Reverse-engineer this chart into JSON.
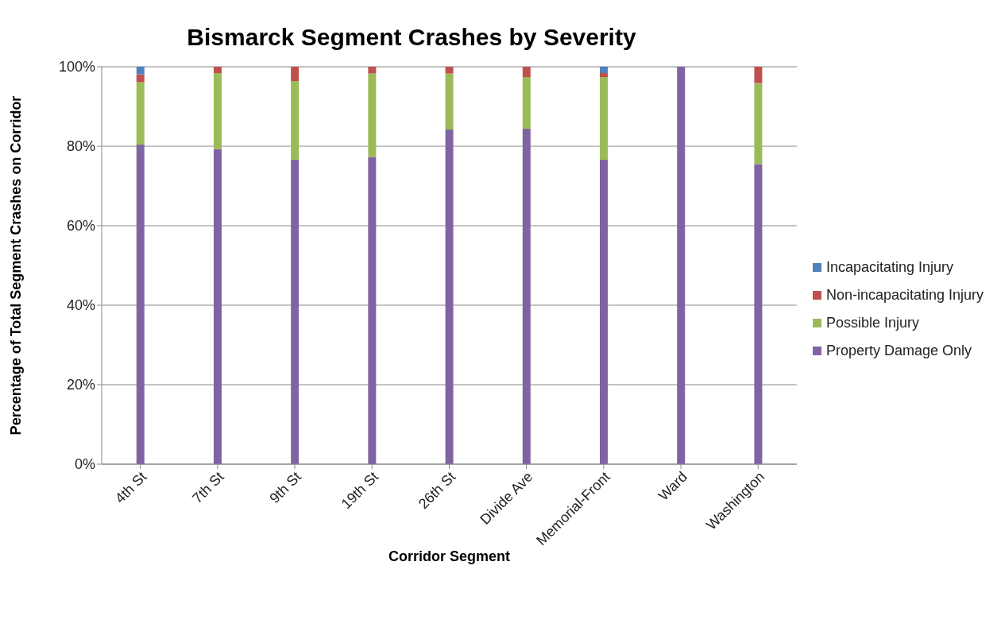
{
  "chart_data": {
    "type": "bar",
    "stacked": true,
    "title": "Bismarck Segment Crashes by Severity",
    "xlabel": "Corridor Segment",
    "ylabel": "Percentage of Total Segment Crashes on Corridor",
    "categories": [
      "4th St",
      "7th St",
      "9th St",
      "19th St",
      "26th St",
      "Divide Ave",
      "Memorial-Front",
      "Ward",
      "Washington"
    ],
    "series": [
      {
        "name": "Property Damage Only",
        "color": "#8064a2",
        "values": [
          80.4,
          79.3,
          76.6,
          77.3,
          84.2,
          84.4,
          76.6,
          100,
          75.5
        ]
      },
      {
        "name": "Possible Injury",
        "color": "#9bbb59",
        "values": [
          15.7,
          19.1,
          19.8,
          21,
          14.1,
          13,
          20.8,
          0,
          20.4
        ]
      },
      {
        "name": "Non-incapacitating Injury",
        "color": "#c0504d",
        "values": [
          2,
          1.6,
          3.6,
          1.7,
          1.7,
          2.6,
          1,
          0,
          4.1
        ]
      },
      {
        "name": "Incapacitating Injury",
        "color": "#4f81bd",
        "values": [
          1.9,
          0,
          0,
          0,
          0,
          0,
          1.6,
          0,
          0
        ]
      }
    ],
    "ylim": [
      0,
      100
    ],
    "yticks": [
      {
        "value": 0,
        "label": "0%"
      },
      {
        "value": 20,
        "label": "20%"
      },
      {
        "value": 40,
        "label": "40%"
      },
      {
        "value": 60,
        "label": "60%"
      },
      {
        "value": 80,
        "label": "80%"
      },
      {
        "value": 100,
        "label": "100%"
      }
    ],
    "grid": "y",
    "legend": "right"
  }
}
